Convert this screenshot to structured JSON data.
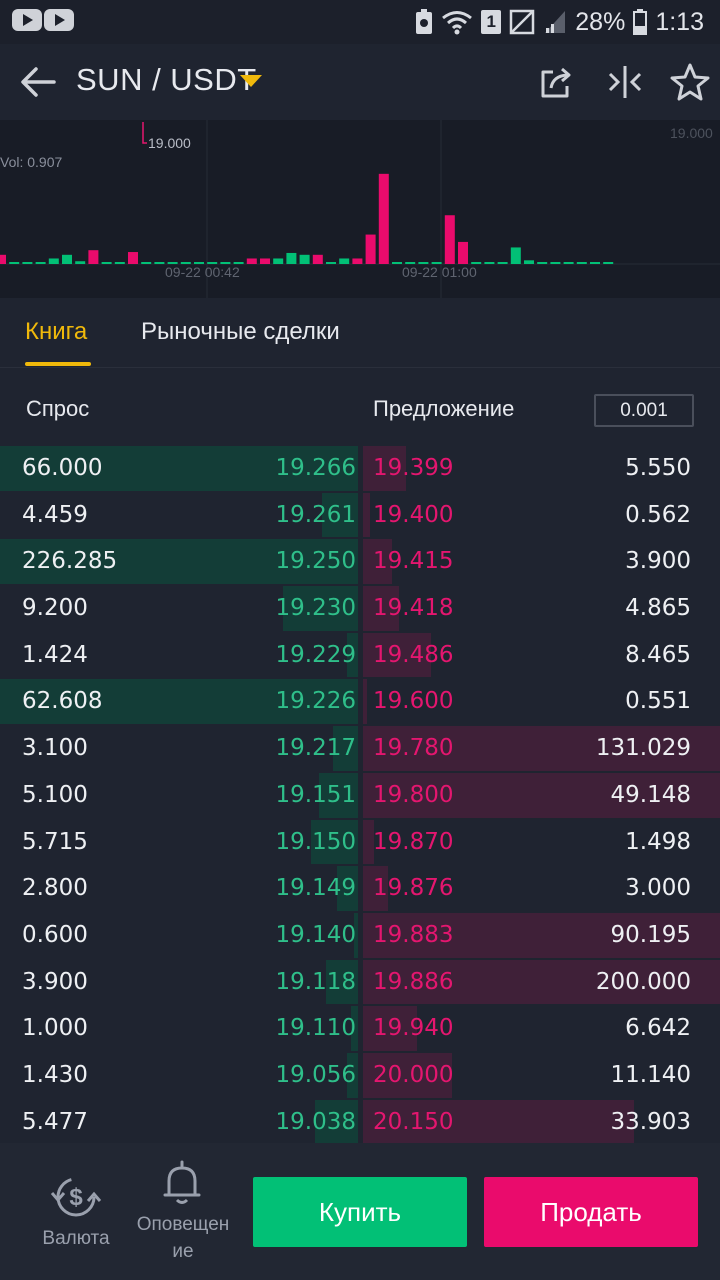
{
  "status_bar": {
    "battery": "28%",
    "time": "1:13",
    "sim_slot": "1"
  },
  "header": {
    "pair": "SUN / USDT"
  },
  "chart": {
    "price_marker": "19.000",
    "price_level": "19.000",
    "vol_label": "Vol: 0.907",
    "time_labels": [
      "09-22 00:42",
      "09-22 01:00"
    ],
    "colors": {
      "up": "#02c076",
      "down": "#ea0b6c"
    },
    "volume_bars": [
      {
        "v": 0.1,
        "c": "down"
      },
      {
        "v": 0.02,
        "c": "up"
      },
      {
        "v": 0.02,
        "c": "up"
      },
      {
        "v": 0.02,
        "c": "up"
      },
      {
        "v": 0.06,
        "c": "up"
      },
      {
        "v": 0.1,
        "c": "up"
      },
      {
        "v": 0.03,
        "c": "up"
      },
      {
        "v": 0.15,
        "c": "down"
      },
      {
        "v": 0.02,
        "c": "up"
      },
      {
        "v": 0.02,
        "c": "up"
      },
      {
        "v": 0.13,
        "c": "down"
      },
      {
        "v": 0.02,
        "c": "up"
      },
      {
        "v": 0.02,
        "c": "up"
      },
      {
        "v": 0.02,
        "c": "up"
      },
      {
        "v": 0.02,
        "c": "up"
      },
      {
        "v": 0.02,
        "c": "up"
      },
      {
        "v": 0.02,
        "c": "up"
      },
      {
        "v": 0.02,
        "c": "up"
      },
      {
        "v": 0.02,
        "c": "up"
      },
      {
        "v": 0.06,
        "c": "down"
      },
      {
        "v": 0.06,
        "c": "down"
      },
      {
        "v": 0.06,
        "c": "up"
      },
      {
        "v": 0.12,
        "c": "up"
      },
      {
        "v": 0.1,
        "c": "up"
      },
      {
        "v": 0.1,
        "c": "down"
      },
      {
        "v": 0.02,
        "c": "up"
      },
      {
        "v": 0.06,
        "c": "up"
      },
      {
        "v": 0.06,
        "c": "down"
      },
      {
        "v": 0.32,
        "c": "down"
      },
      {
        "v": 0.98,
        "c": "down"
      },
      {
        "v": 0.02,
        "c": "up"
      },
      {
        "v": 0.02,
        "c": "up"
      },
      {
        "v": 0.02,
        "c": "up"
      },
      {
        "v": 0.02,
        "c": "up"
      },
      {
        "v": 0.53,
        "c": "down"
      },
      {
        "v": 0.24,
        "c": "down"
      },
      {
        "v": 0.02,
        "c": "up"
      },
      {
        "v": 0.02,
        "c": "up"
      },
      {
        "v": 0.02,
        "c": "up"
      },
      {
        "v": 0.18,
        "c": "up"
      },
      {
        "v": 0.04,
        "c": "up"
      },
      {
        "v": 0.02,
        "c": "up"
      },
      {
        "v": 0.02,
        "c": "up"
      },
      {
        "v": 0.02,
        "c": "up"
      },
      {
        "v": 0.02,
        "c": "up"
      },
      {
        "v": 0.02,
        "c": "up"
      },
      {
        "v": 0.02,
        "c": "up"
      }
    ]
  },
  "tabs": [
    {
      "label": "Книга",
      "active": true
    },
    {
      "label": "Рыночные сделки",
      "active": false
    }
  ],
  "book": {
    "bid_header": "Спрос",
    "ask_header": "Предложение",
    "precision": "0.001",
    "colors": {
      "bid": "#2fbf8a",
      "ask": "#e4166f"
    },
    "rows": [
      {
        "bid_qty": "66.000",
        "bid_price": "19.266",
        "bid_depth": 1.0,
        "ask_price": "19.399",
        "ask_qty": "5.550",
        "ask_depth": 0.12
      },
      {
        "bid_qty": "4.459",
        "bid_price": "19.261",
        "bid_depth": 0.1,
        "ask_price": "19.400",
        "ask_qty": "0.562",
        "ask_depth": 0.02
      },
      {
        "bid_qty": "226.285",
        "bid_price": "19.250",
        "bid_depth": 1.0,
        "ask_price": "19.415",
        "ask_qty": "3.900",
        "ask_depth": 0.08
      },
      {
        "bid_qty": "9.200",
        "bid_price": "19.230",
        "bid_depth": 0.21,
        "ask_price": "19.418",
        "ask_qty": "4.865",
        "ask_depth": 0.1
      },
      {
        "bid_qty": "1.424",
        "bid_price": "19.229",
        "bid_depth": 0.03,
        "ask_price": "19.486",
        "ask_qty": "8.465",
        "ask_depth": 0.19
      },
      {
        "bid_qty": "62.608",
        "bid_price": "19.226",
        "bid_depth": 1.0,
        "ask_price": "19.600",
        "ask_qty": "0.551",
        "ask_depth": 0.01
      },
      {
        "bid_qty": "3.100",
        "bid_price": "19.217",
        "bid_depth": 0.07,
        "ask_price": "19.780",
        "ask_qty": "131.029",
        "ask_depth": 1.0
      },
      {
        "bid_qty": "5.100",
        "bid_price": "19.151",
        "bid_depth": 0.11,
        "ask_price": "19.800",
        "ask_qty": "49.148",
        "ask_depth": 1.0
      },
      {
        "bid_qty": "5.715",
        "bid_price": "19.150",
        "bid_depth": 0.13,
        "ask_price": "19.870",
        "ask_qty": "1.498",
        "ask_depth": 0.03
      },
      {
        "bid_qty": "2.800",
        "bid_price": "19.149",
        "bid_depth": 0.06,
        "ask_price": "19.876",
        "ask_qty": "3.000",
        "ask_depth": 0.07
      },
      {
        "bid_qty": "0.600",
        "bid_price": "19.140",
        "bid_depth": 0.01,
        "ask_price": "19.883",
        "ask_qty": "90.195",
        "ask_depth": 1.0
      },
      {
        "bid_qty": "3.900",
        "bid_price": "19.118",
        "bid_depth": 0.09,
        "ask_price": "19.886",
        "ask_qty": "200.000",
        "ask_depth": 1.0
      },
      {
        "bid_qty": "1.000",
        "bid_price": "19.110",
        "bid_depth": 0.02,
        "ask_price": "19.940",
        "ask_qty": "6.642",
        "ask_depth": 0.15
      },
      {
        "bid_qty": "1.430",
        "bid_price": "19.056",
        "bid_depth": 0.03,
        "ask_price": "20.000",
        "ask_qty": "11.140",
        "ask_depth": 0.25
      },
      {
        "bid_qty": "5.477",
        "bid_price": "19.038",
        "bid_depth": 0.12,
        "ask_price": "20.150",
        "ask_qty": "33.903",
        "ask_depth": 0.76
      }
    ]
  },
  "bottom": {
    "currency_label": "Валюта",
    "alerts_label_line1": "Оповещен",
    "alerts_label_line2": "ие",
    "buy_label": "Купить",
    "sell_label": "Продать",
    "icons": [
      "currency-exchange-icon",
      "bell-icon"
    ]
  },
  "accent_color": "#f0b90b"
}
